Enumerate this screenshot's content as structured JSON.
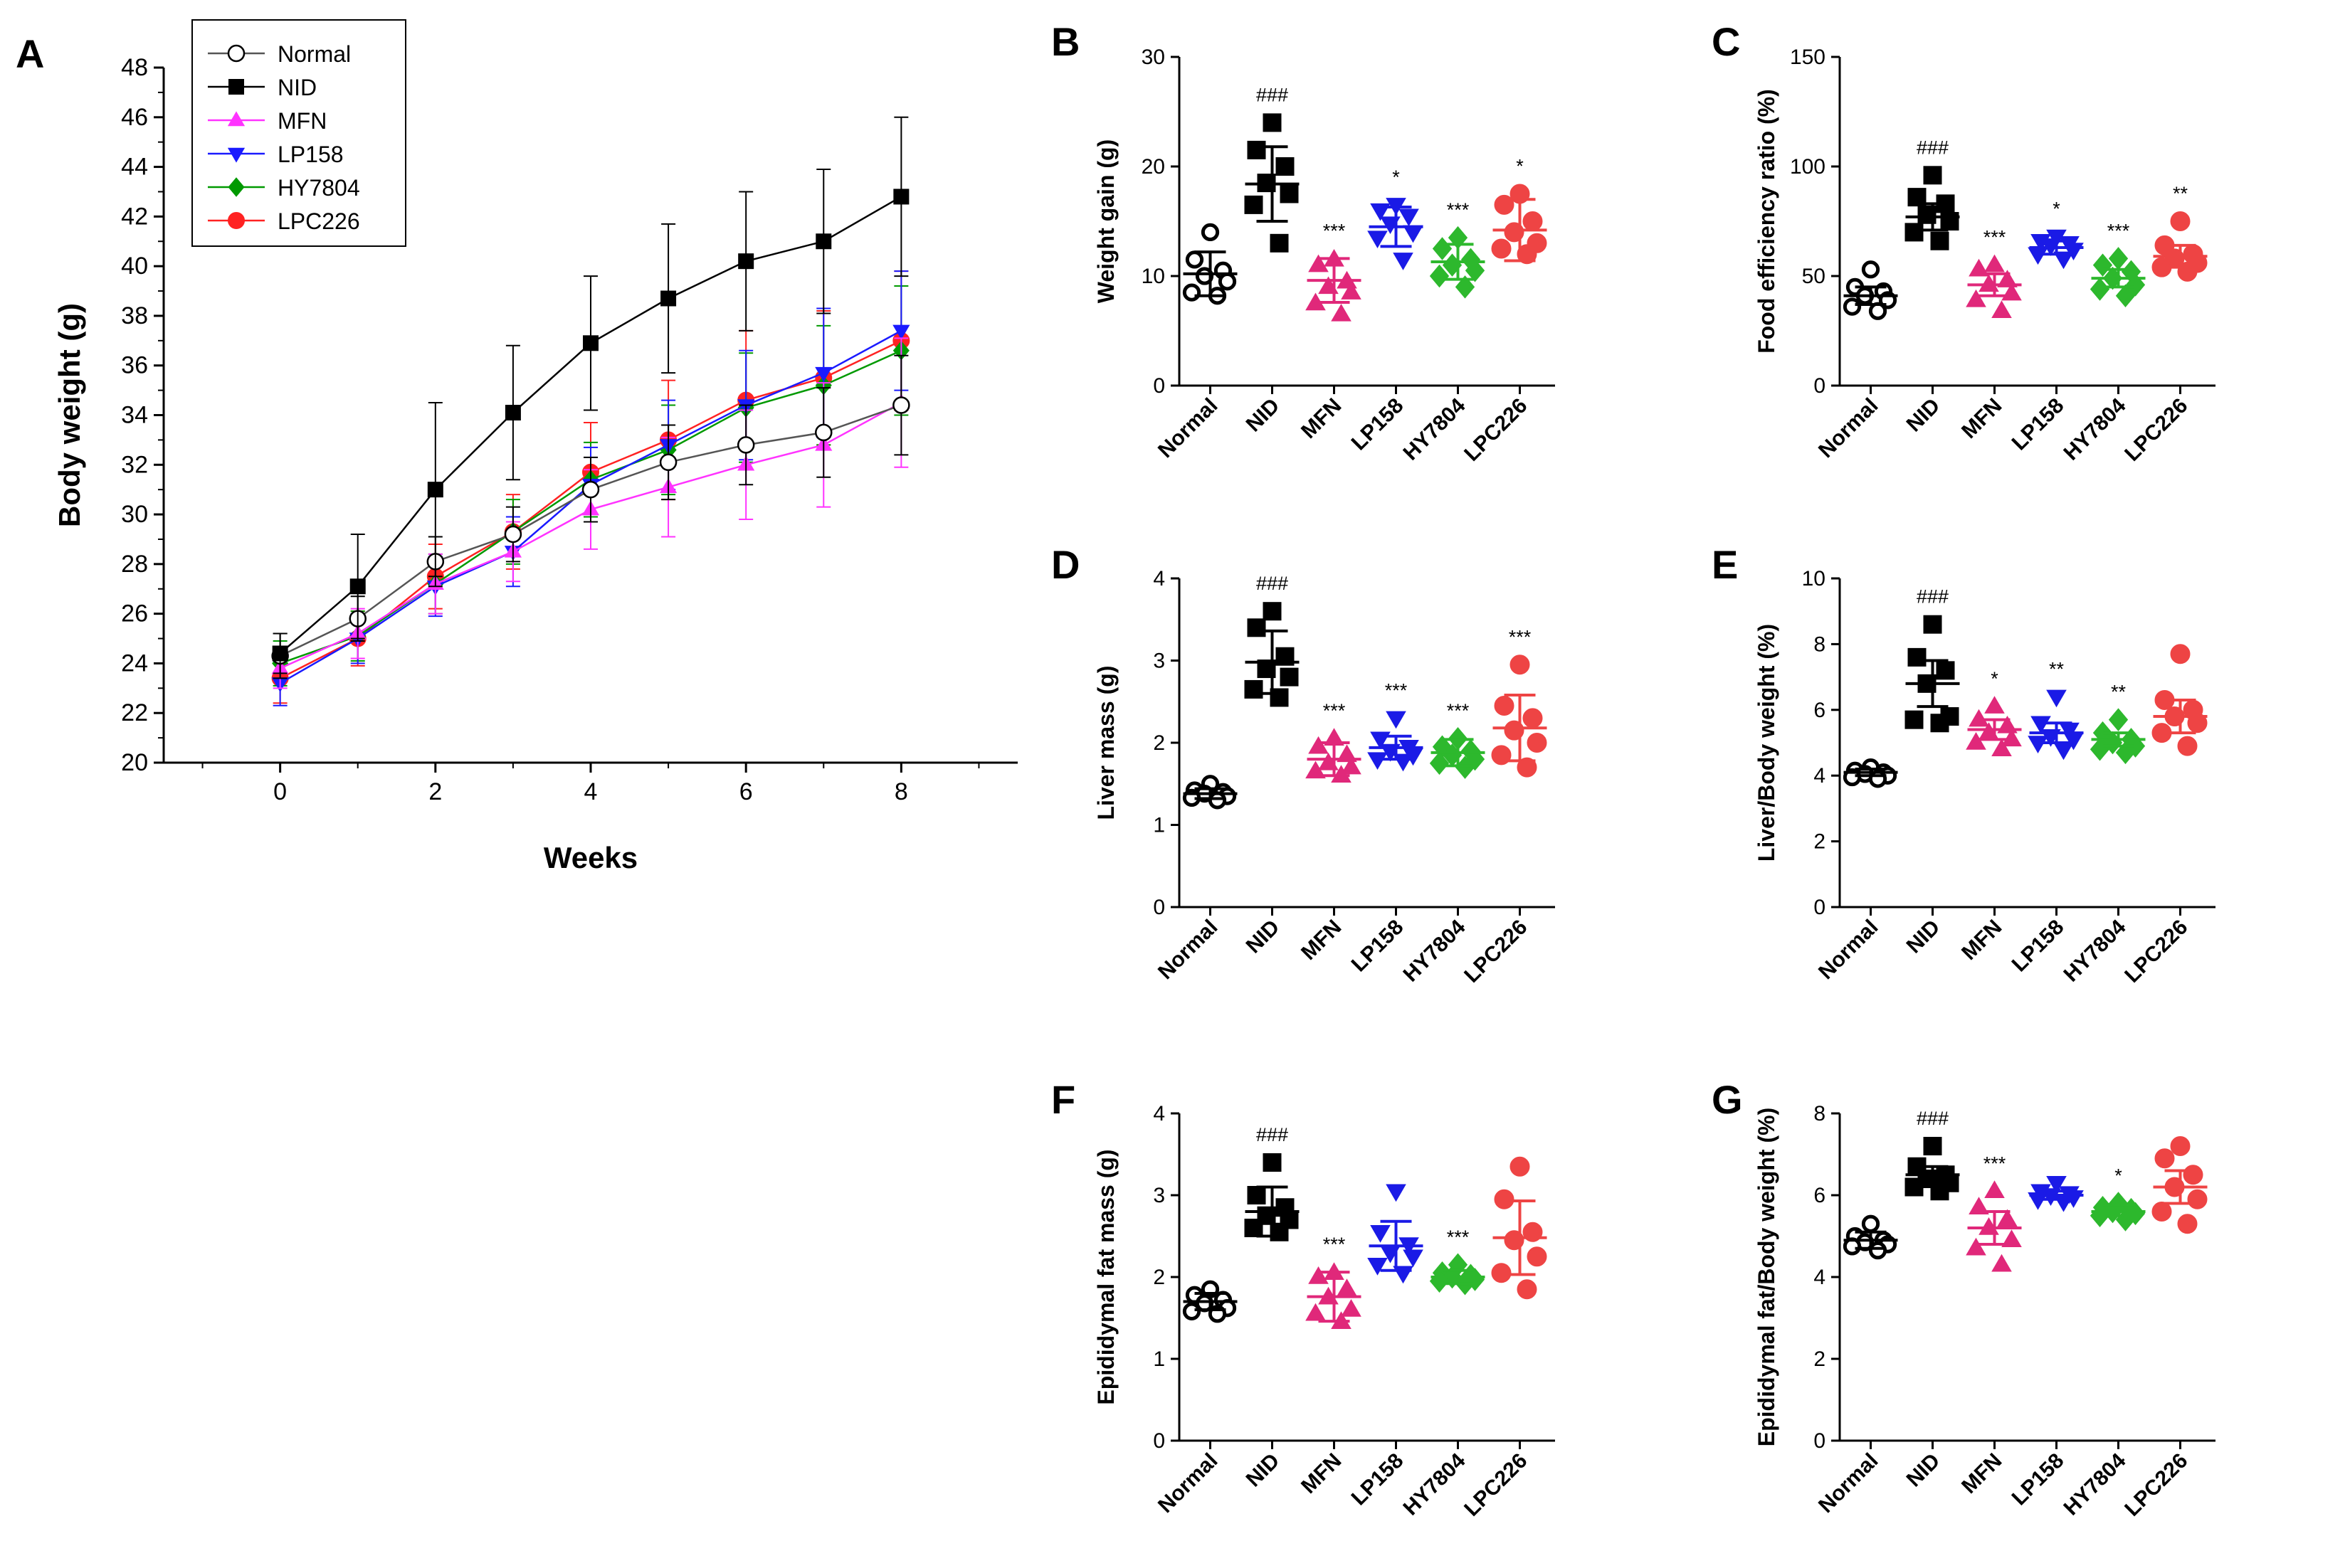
{
  "colors": {
    "Normal": "#000000",
    "NID": "#000000",
    "MFN": "#ff33ff",
    "LP158": "#1a1aff",
    "HY7804": "#009900",
    "LPC226": "#ff2222",
    "scatter_MFN": "#e0287a",
    "scatter_LP158": "#1a1ae6",
    "scatter_HY7804": "#2db82d",
    "scatter_LPC226": "#ee4444"
  },
  "chart_data": [
    {
      "id": "A",
      "type": "line",
      "panel_label": "A",
      "xlabel": "Weeks",
      "ylabel": "Body weight (g)",
      "xlim": [
        -1.5,
        9.5
      ],
      "ylim": [
        20,
        48
      ],
      "x_ticks": [
        0,
        2,
        4,
        6,
        8
      ],
      "y_ticks": [
        20,
        22,
        24,
        26,
        28,
        30,
        32,
        34,
        36,
        38,
        40,
        42,
        44,
        46,
        48
      ],
      "x": [
        0,
        1,
        2,
        3,
        4,
        5,
        6,
        7,
        8
      ],
      "legend": [
        "Normal",
        "NID",
        "MFN",
        "LP158",
        "HY7804",
        "LPC226"
      ],
      "legend_position": "top-left",
      "series": [
        {
          "name": "Normal",
          "marker": "open-circle",
          "values": [
            24.3,
            25.8,
            28.1,
            29.2,
            31.0,
            32.1,
            32.8,
            33.3,
            34.4
          ],
          "sd": [
            0.9,
            0.9,
            1.0,
            1.1,
            1.3,
            1.5,
            1.6,
            1.8,
            2.0
          ]
        },
        {
          "name": "NID",
          "marker": "square",
          "values": [
            24.4,
            27.1,
            31.0,
            34.1,
            36.9,
            38.7,
            40.2,
            41.0,
            42.8
          ],
          "sd": [
            0.8,
            2.1,
            3.5,
            2.7,
            2.7,
            3.0,
            2.8,
            2.9,
            3.2
          ]
        },
        {
          "name": "MFN",
          "marker": "triangle-up",
          "values": [
            23.8,
            25.2,
            27.2,
            28.5,
            30.2,
            31.1,
            32.0,
            32.8,
            34.5
          ],
          "sd": [
            0.8,
            1.0,
            1.2,
            1.2,
            1.6,
            2.0,
            2.2,
            2.5,
            2.6
          ]
        },
        {
          "name": "LP158",
          "marker": "triangle-down",
          "values": [
            23.2,
            25.0,
            27.1,
            28.5,
            31.2,
            32.8,
            34.4,
            35.7,
            37.4
          ],
          "sd": [
            0.9,
            1.0,
            1.2,
            1.4,
            1.5,
            1.8,
            2.2,
            2.6,
            2.4
          ]
        },
        {
          "name": "HY7804",
          "marker": "diamond",
          "values": [
            24.0,
            25.1,
            27.2,
            29.3,
            31.4,
            32.6,
            34.3,
            35.2,
            36.6
          ],
          "sd": [
            0.9,
            1.0,
            1.2,
            1.3,
            1.5,
            1.8,
            2.2,
            2.4,
            2.6
          ]
        },
        {
          "name": "LPC226",
          "marker": "circle",
          "values": [
            23.4,
            25.0,
            27.5,
            29.3,
            31.7,
            33.0,
            34.6,
            35.5,
            37.0
          ],
          "sd": [
            1.0,
            1.1,
            1.3,
            1.5,
            2.0,
            2.4,
            2.8,
            2.7,
            2.8
          ]
        }
      ]
    },
    {
      "id": "B",
      "type": "scatter",
      "panel_label": "B",
      "ylabel": "Weight gain (g)",
      "ylim": [
        0,
        30
      ],
      "y_ticks": [
        0,
        10,
        20,
        30
      ],
      "categories": [
        "Normal",
        "NID",
        "MFN",
        "LP158",
        "HY7804",
        "LPC226"
      ],
      "means": [
        10.2,
        18.4,
        9.6,
        14.5,
        11.3,
        14.2
      ],
      "sd": [
        2.0,
        3.4,
        2.0,
        1.8,
        1.6,
        2.8
      ],
      "annotations": [
        "",
        "###",
        "***",
        "*",
        "***",
        "*"
      ],
      "points": [
        [
          14.0,
          11.5,
          10.5,
          10.0,
          9.5,
          8.5,
          8.2
        ],
        [
          24.0,
          21.5,
          20.0,
          18.5,
          17.5,
          16.5,
          13.0
        ],
        [
          11.5,
          11.0,
          9.5,
          9.0,
          8.5,
          7.5,
          6.5
        ],
        [
          16.5,
          16.0,
          15.5,
          14.8,
          14.0,
          13.5,
          11.5
        ],
        [
          13.5,
          12.5,
          11.5,
          11.0,
          10.5,
          10.0,
          9.0
        ],
        [
          17.5,
          16.5,
          15.0,
          14.0,
          13.0,
          12.5,
          12.0
        ]
      ]
    },
    {
      "id": "C",
      "type": "scatter",
      "panel_label": "C",
      "ylabel": "Food efficiency ratio (%)",
      "ylim": [
        0,
        150
      ],
      "y_ticks": [
        0,
        50,
        100,
        150
      ],
      "categories": [
        "Normal",
        "NID",
        "MFN",
        "LP158",
        "HY7804",
        "LPC226"
      ],
      "means": [
        41,
        77,
        46,
        63,
        49,
        59
      ],
      "sd": [
        4,
        6,
        5,
        3,
        4,
        5
      ],
      "annotations": [
        "",
        "###",
        "***",
        "*",
        "***",
        "**"
      ],
      "points": [
        [
          53,
          45,
          43,
          41,
          39,
          36,
          34
        ],
        [
          96,
          86,
          83,
          78,
          75,
          70,
          66
        ],
        [
          55,
          53,
          48,
          46,
          42,
          39,
          34
        ],
        [
          68,
          66,
          65,
          64,
          62,
          60,
          58
        ],
        [
          58,
          55,
          52,
          49,
          46,
          44,
          41
        ],
        [
          75,
          64,
          60,
          58,
          56,
          54,
          52
        ]
      ]
    },
    {
      "id": "D",
      "type": "scatter",
      "panel_label": "D",
      "ylabel": "Liver mass (g)",
      "ylim": [
        0,
        4
      ],
      "y_ticks": [
        0,
        1,
        2,
        3,
        4
      ],
      "categories": [
        "Normal",
        "NID",
        "MFN",
        "LP158",
        "HY7804",
        "LPC226"
      ],
      "means": [
        1.38,
        2.98,
        1.8,
        1.94,
        1.88,
        2.18
      ],
      "sd": [
        0.06,
        0.38,
        0.2,
        0.14,
        0.16,
        0.4
      ],
      "annotations": [
        "",
        "###",
        "***",
        "***",
        "***",
        "***"
      ],
      "points": [
        [
          1.5,
          1.42,
          1.4,
          1.38,
          1.35,
          1.33,
          1.3
        ],
        [
          3.6,
          3.4,
          3.05,
          2.9,
          2.8,
          2.65,
          2.55
        ],
        [
          2.05,
          1.95,
          1.85,
          1.75,
          1.7,
          1.65,
          1.6
        ],
        [
          2.3,
          2.05,
          1.95,
          1.9,
          1.85,
          1.8,
          1.78
        ],
        [
          2.05,
          1.95,
          1.9,
          1.85,
          1.8,
          1.75,
          1.7
        ],
        [
          2.95,
          2.45,
          2.3,
          2.15,
          2.0,
          1.85,
          1.7
        ]
      ]
    },
    {
      "id": "E",
      "type": "scatter",
      "panel_label": "E",
      "ylabel": "Liver/Body weight (%)",
      "ylim": [
        0,
        10
      ],
      "y_ticks": [
        0,
        2,
        4,
        6,
        8,
        10
      ],
      "categories": [
        "Normal",
        "NID",
        "MFN",
        "LP158",
        "HY7804",
        "LPC226"
      ],
      "means": [
        4.1,
        6.8,
        5.4,
        5.3,
        5.1,
        5.8
      ],
      "sd": [
        0.1,
        0.7,
        0.3,
        0.3,
        0.2,
        0.5
      ],
      "annotations": [
        "",
        "###",
        "*",
        "**",
        "**",
        ""
      ],
      "points": [
        [
          4.25,
          4.15,
          4.1,
          4.05,
          4.0,
          3.95,
          3.9
        ],
        [
          8.6,
          7.6,
          7.2,
          6.8,
          5.8,
          5.7,
          5.6
        ],
        [
          6.1,
          5.7,
          5.5,
          5.3,
          5.1,
          5.0,
          4.8
        ],
        [
          6.4,
          5.6,
          5.4,
          5.2,
          5.1,
          5.0,
          4.8
        ],
        [
          5.7,
          5.3,
          5.1,
          5.0,
          4.9,
          4.8,
          4.7
        ],
        [
          7.7,
          6.3,
          6.0,
          5.8,
          5.6,
          5.3,
          4.9
        ]
      ]
    },
    {
      "id": "F",
      "type": "scatter",
      "panel_label": "F",
      "ylabel": "Epididymal fat mass (g)",
      "ylim": [
        0,
        4
      ],
      "y_ticks": [
        0,
        1,
        2,
        3,
        4
      ],
      "categories": [
        "Normal",
        "NID",
        "MFN",
        "LP158",
        "HY7804",
        "LPC226"
      ],
      "means": [
        1.7,
        2.8,
        1.76,
        2.38,
        2.0,
        2.48
      ],
      "sd": [
        0.1,
        0.3,
        0.3,
        0.3,
        0.08,
        0.45
      ],
      "annotations": [
        "",
        "###",
        "***",
        "",
        "***",
        ""
      ],
      "points": [
        [
          1.85,
          1.78,
          1.72,
          1.68,
          1.62,
          1.58,
          1.55
        ],
        [
          3.4,
          3.0,
          2.85,
          2.75,
          2.7,
          2.6,
          2.55
        ],
        [
          2.05,
          2.0,
          1.85,
          1.75,
          1.6,
          1.55,
          1.45
        ],
        [
          3.05,
          2.55,
          2.4,
          2.3,
          2.25,
          2.15,
          2.05
        ],
        [
          2.15,
          2.05,
          2.02,
          2.0,
          1.97,
          1.95,
          1.92
        ],
        [
          3.35,
          2.95,
          2.55,
          2.45,
          2.25,
          2.05,
          1.85
        ]
      ]
    },
    {
      "id": "G",
      "type": "scatter",
      "panel_label": "G",
      "ylabel": "Epididymal fat/Body weight (%)",
      "ylim": [
        0,
        8
      ],
      "y_ticks": [
        0,
        2,
        4,
        6,
        8
      ],
      "categories": [
        "Normal",
        "NID",
        "MFN",
        "LP158",
        "HY7804",
        "LPC226"
      ],
      "means": [
        4.9,
        6.5,
        5.2,
        6.0,
        5.6,
        6.2
      ],
      "sd": [
        0.2,
        0.2,
        0.4,
        0.1,
        0.1,
        0.4
      ],
      "annotations": [
        "",
        "###",
        "***",
        "",
        "*",
        ""
      ],
      "points": [
        [
          5.3,
          5.0,
          4.9,
          4.85,
          4.8,
          4.75,
          4.65
        ],
        [
          7.2,
          6.7,
          6.5,
          6.4,
          6.3,
          6.2,
          6.1
        ],
        [
          6.1,
          5.7,
          5.4,
          5.2,
          4.9,
          4.7,
          4.3
        ],
        [
          6.3,
          6.1,
          6.05,
          6.0,
          5.95,
          5.9,
          5.85
        ],
        [
          5.8,
          5.7,
          5.65,
          5.6,
          5.55,
          5.5,
          5.4
        ],
        [
          7.2,
          6.9,
          6.5,
          6.2,
          5.9,
          5.6,
          5.3
        ]
      ]
    }
  ]
}
